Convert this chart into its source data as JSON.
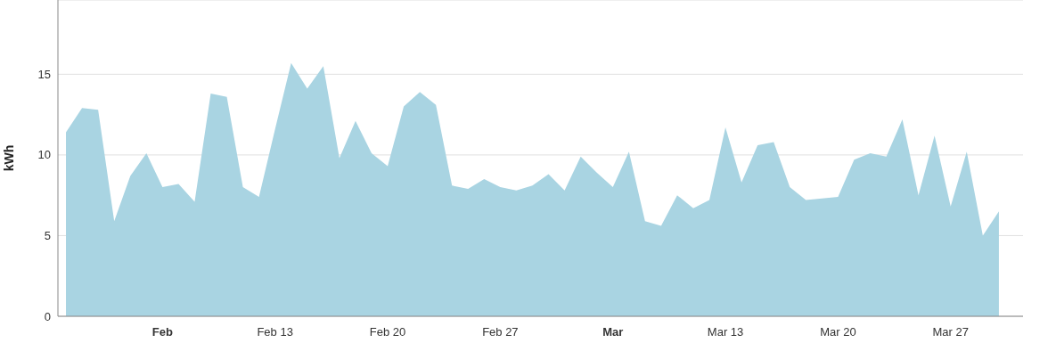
{
  "chart_data": {
    "type": "area",
    "ylabel": "kWh",
    "color": "#a9d4e2",
    "x": [
      "--01-31",
      "--02-01",
      "--02-02",
      "--02-03",
      "--02-04",
      "--02-05",
      "--02-06",
      "--02-07",
      "--02-08",
      "--02-09",
      "--02-10",
      "--02-11",
      "--02-12",
      "--02-13",
      "--02-14",
      "--02-15",
      "--02-16",
      "--02-17",
      "--02-18",
      "--02-19",
      "--02-20",
      "--02-21",
      "--02-22",
      "--02-23",
      "--02-24",
      "--02-25",
      "--02-26",
      "--02-27",
      "--02-28",
      "--03-01",
      "--03-02",
      "--03-03",
      "--03-04",
      "--03-05",
      "--03-06",
      "--03-07",
      "--03-08",
      "--03-09",
      "--03-10",
      "--03-11",
      "--03-12",
      "--03-13",
      "--03-14",
      "--03-15",
      "--03-16",
      "--03-17",
      "--03-18",
      "--03-19",
      "--03-20",
      "--03-21",
      "--03-22",
      "--03-23",
      "--03-24",
      "--03-25",
      "--03-26",
      "--03-27",
      "--03-28",
      "--03-29",
      "--03-30"
    ],
    "values": [
      11.4,
      12.9,
      12.8,
      5.9,
      8.7,
      10.1,
      8.0,
      8.2,
      7.1,
      13.8,
      13.6,
      8.0,
      7.4,
      11.6,
      15.7,
      14.1,
      15.5,
      9.8,
      12.1,
      10.1,
      9.3,
      13.0,
      13.9,
      13.1,
      8.1,
      7.9,
      8.5,
      8.0,
      7.8,
      8.1,
      8.8,
      7.8,
      9.9,
      8.9,
      8.0,
      10.2,
      5.9,
      5.6,
      7.5,
      6.7,
      7.2,
      11.7,
      8.3,
      10.6,
      10.8,
      8.0,
      7.2,
      7.3,
      7.4,
      9.7,
      10.1,
      9.9,
      12.2,
      7.5,
      11.2,
      6.8,
      10.2,
      5.0,
      6.5
    ],
    "xlim": [
      "--01-30T12:00",
      "--03-31T12:00"
    ],
    "xticks": [
      {
        "value": "--02-06",
        "label": "Feb"
      },
      {
        "value": "--02-13",
        "label": "Feb 13"
      },
      {
        "value": "--02-20",
        "label": "Feb 20"
      },
      {
        "value": "--02-27",
        "label": "Feb 27"
      },
      {
        "value": "--03-06",
        "label": "Mar"
      },
      {
        "value": "--03-13",
        "label": "Mar 13"
      },
      {
        "value": "--03-20",
        "label": "Mar 20"
      },
      {
        "value": "--03-27",
        "label": "Mar 27"
      }
    ],
    "ylim": [
      0,
      19.6
    ],
    "yticks": [
      0,
      5,
      10,
      15
    ],
    "grid": "y"
  }
}
